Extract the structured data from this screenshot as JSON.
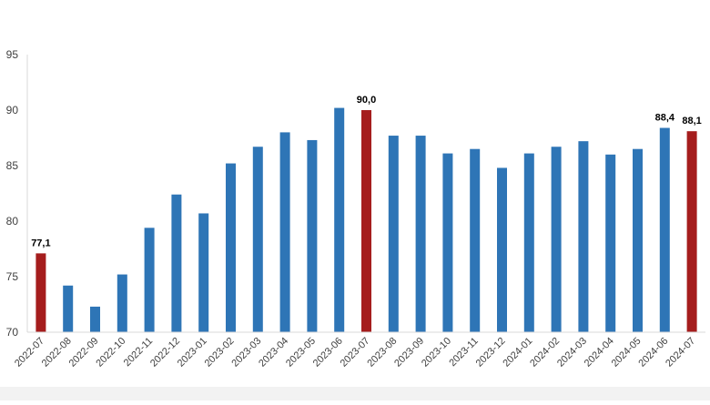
{
  "chart_data": {
    "type": "bar",
    "title": "",
    "xlabel": "",
    "ylabel": "",
    "ylim": [
      70,
      95
    ],
    "yticks": [
      "70",
      "75",
      "80",
      "85",
      "90",
      "95"
    ],
    "ytick_values": [
      70,
      75,
      80,
      85,
      90,
      95
    ],
    "grid": false,
    "categories": [
      "2022-07",
      "2022-08",
      "2022-09",
      "2022-10",
      "2022-11",
      "2022-12",
      "2023-01",
      "2023-02",
      "2023-03",
      "2023-04",
      "2023-05",
      "2023-06",
      "2023-07",
      "2023-08",
      "2023-09",
      "2023-10",
      "2023-11",
      "2023-12",
      "2024-01",
      "2024-02",
      "2024-03",
      "2024-04",
      "2024-05",
      "2024-06",
      "2024-07"
    ],
    "values": [
      77.1,
      74.2,
      72.3,
      75.2,
      79.4,
      82.4,
      80.7,
      85.2,
      86.7,
      88.0,
      87.3,
      90.2,
      90.0,
      87.7,
      87.7,
      86.1,
      86.5,
      84.8,
      86.1,
      86.7,
      87.2,
      86.0,
      86.5,
      88.4,
      88.1
    ],
    "highlighted_categories": [
      "2022-07",
      "2023-07",
      "2024-07"
    ],
    "data_labels": [
      {
        "category": "2022-07",
        "text": "77,1"
      },
      {
        "category": "2023-07",
        "text": "90,0"
      },
      {
        "category": "2024-06",
        "text": "88,4"
      },
      {
        "category": "2024-07",
        "text": "88,1"
      }
    ],
    "colors": {
      "bar": "#2e75b6",
      "highlight": "#a51d1d",
      "axis": "#d9d9d9",
      "tick_text": "#404040",
      "label_text": "#000000"
    }
  }
}
